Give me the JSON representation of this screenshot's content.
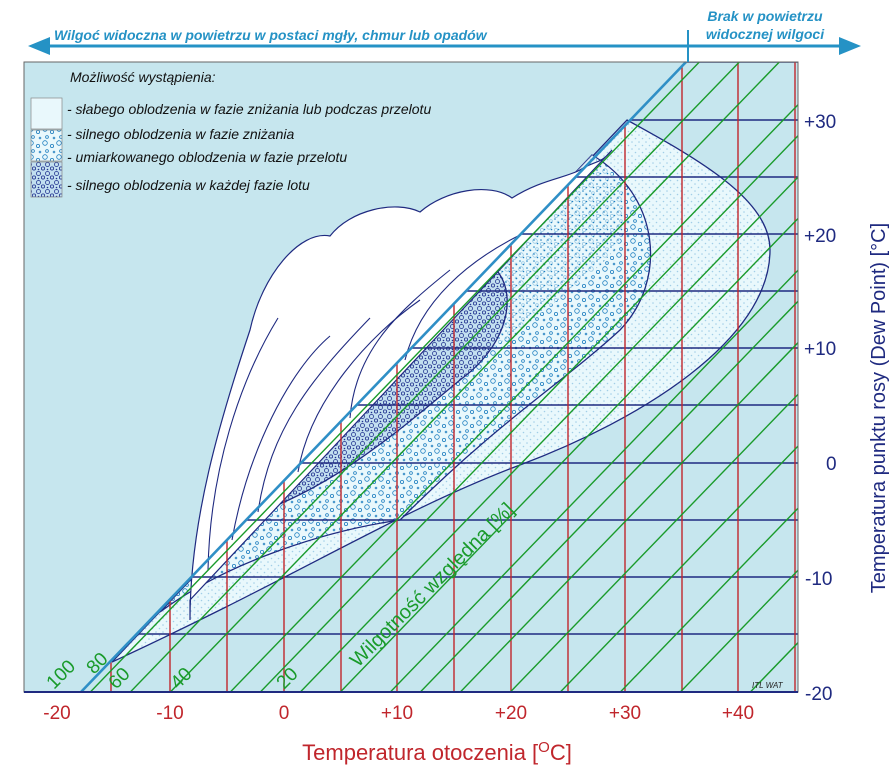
{
  "header": {
    "left_text": "Wilgoć widoczna w powietrzu w postaci mgły, chmur lub opadów",
    "right_text_line1": "Brak w powietrzu",
    "right_text_line2": "widocznej wilgoci"
  },
  "legend": {
    "title": "Możliwość wystąpienia:",
    "items": [
      {
        "label": "- słabego oblodzenia w fazie zniżania lub podczas przelotu"
      },
      {
        "label": "- silnego oblodzenia w fazie zniżania"
      },
      {
        "label": "- umiarkowanego oblodzenia w fazie przelotu"
      },
      {
        "label": "- silnego oblodzenia w każdej fazie lotu"
      }
    ]
  },
  "axes": {
    "x_title_prefix": "Temperatura otoczenia [",
    "x_title_degree": "O",
    "x_title_suffix": "C]",
    "y_title": "Temperatura punktu rosy (Dew Point) [°C]",
    "x_ticks": [
      "-20",
      "-10",
      "0",
      "+10",
      "+20",
      "+30",
      "+40"
    ],
    "y_ticks": [
      "+30",
      "+20",
      "+10",
      "0",
      "-10",
      "-20"
    ]
  },
  "humidity": {
    "label": "Wilgotność względna [%]",
    "values": [
      "100",
      "80",
      "60",
      "40",
      "20"
    ]
  },
  "credit": "ITL WAT",
  "colors": {
    "background": "#c6e6ee",
    "diagonal": "#2f8fc6",
    "vertical_lines": "#c0262c",
    "horizontal_lines": "#1f2a80",
    "humidity_lines": "#1a9b2b",
    "arrow": "#2592c5",
    "light_zone": "#e9f8fc",
    "dots": "#1f7fc0",
    "severe_circles": "#21328f"
  }
}
